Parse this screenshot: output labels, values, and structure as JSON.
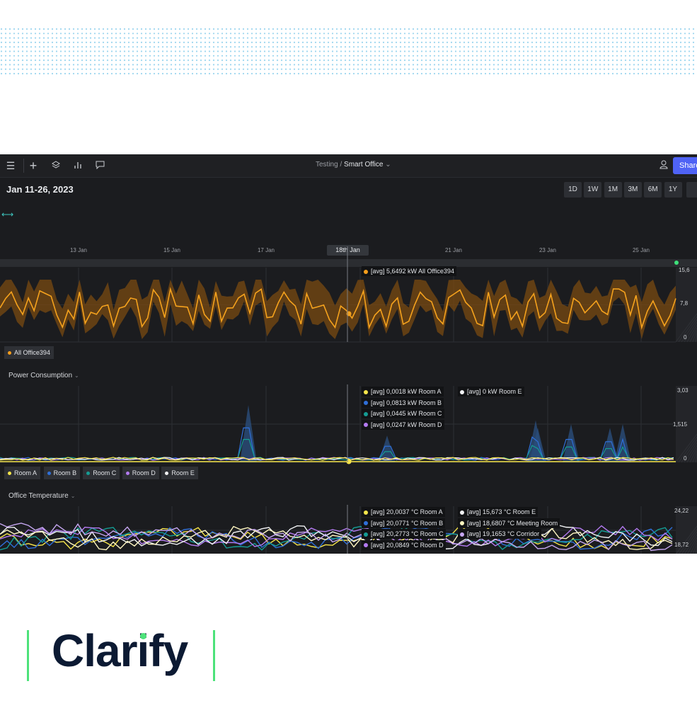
{
  "topbar": {
    "icons": [
      "menu-icon",
      "plus-icon",
      "layers-icon",
      "chart-icon",
      "comment-icon"
    ],
    "breadcrumb_parent": "Testing /",
    "breadcrumb_current": "Smart Office",
    "share_label": "Share"
  },
  "toolbar": {
    "date_range": "Jan 11-26, 2023",
    "ranges": [
      "1D",
      "1W",
      "1M",
      "3M",
      "6M",
      "1Y"
    ]
  },
  "timeline": {
    "ticks": [
      "13 Jan",
      "15 Jan",
      "17 Jan",
      "21 Jan",
      "23 Jan",
      "25 Jan"
    ],
    "cursor_label": "18th Jan"
  },
  "panels": {
    "power_total": {
      "tooltip": [
        {
          "label": "[avg] 5,6492 kW  All Office394",
          "color": "#f59e1b"
        }
      ],
      "y_ticks": [
        "15,6",
        "7,8",
        "0"
      ],
      "legend": [
        {
          "label": "All Office394",
          "color": "#f59e1b"
        }
      ]
    },
    "power_rooms": {
      "title": "Power Consumption",
      "tooltip_left": [
        {
          "label": "[avg] 0,0018 kW  Room A",
          "color": "#f6e54a"
        },
        {
          "label": "[avg] 0,0813 kW  Room B",
          "color": "#2f6fd8"
        },
        {
          "label": "[avg] 0,0445 kW  Room C",
          "color": "#159c94"
        },
        {
          "label": "[avg] 0,0247 kW  Room D",
          "color": "#b37af0"
        }
      ],
      "tooltip_right": [
        {
          "label": "[avg] 0 kW  Room E",
          "color": "#f1f2f4"
        }
      ],
      "y_ticks": [
        "3,03",
        "1,515",
        "0"
      ],
      "legend": [
        {
          "label": "Room A",
          "color": "#f6e54a"
        },
        {
          "label": "Room B",
          "color": "#2f6fd8"
        },
        {
          "label": "Room C",
          "color": "#159c94"
        },
        {
          "label": "Room D",
          "color": "#b37af0"
        },
        {
          "label": "Room E",
          "color": "#f1f2f4"
        }
      ]
    },
    "temperature": {
      "title": "Office Temperature",
      "tooltip_left": [
        {
          "label": "[avg] 20,0037 °C  Room A",
          "color": "#f6e54a"
        },
        {
          "label": "[avg] 20,0771 °C  Room B",
          "color": "#2f6fd8"
        },
        {
          "label": "[avg] 20,2773 °C  Room C",
          "color": "#159c94"
        },
        {
          "label": "[avg] 20,0849 °C  Room D",
          "color": "#b37af0"
        }
      ],
      "tooltip_right": [
        {
          "label": "[avg] 15,673 °C  Room E",
          "color": "#f1f2f4"
        },
        {
          "label": "[avg] 18,6807 °C  Meeting Room",
          "color": "#fff7c2"
        },
        {
          "label": "[avg] 19,1653 °C  Corridor",
          "color": "#c6a7f2"
        }
      ],
      "y_ticks": [
        "24,22",
        "18,72"
      ]
    }
  },
  "brand": {
    "logo_text": "Clarify",
    "accent": "#4de27a",
    "text_color": "#0c1a33"
  }
}
